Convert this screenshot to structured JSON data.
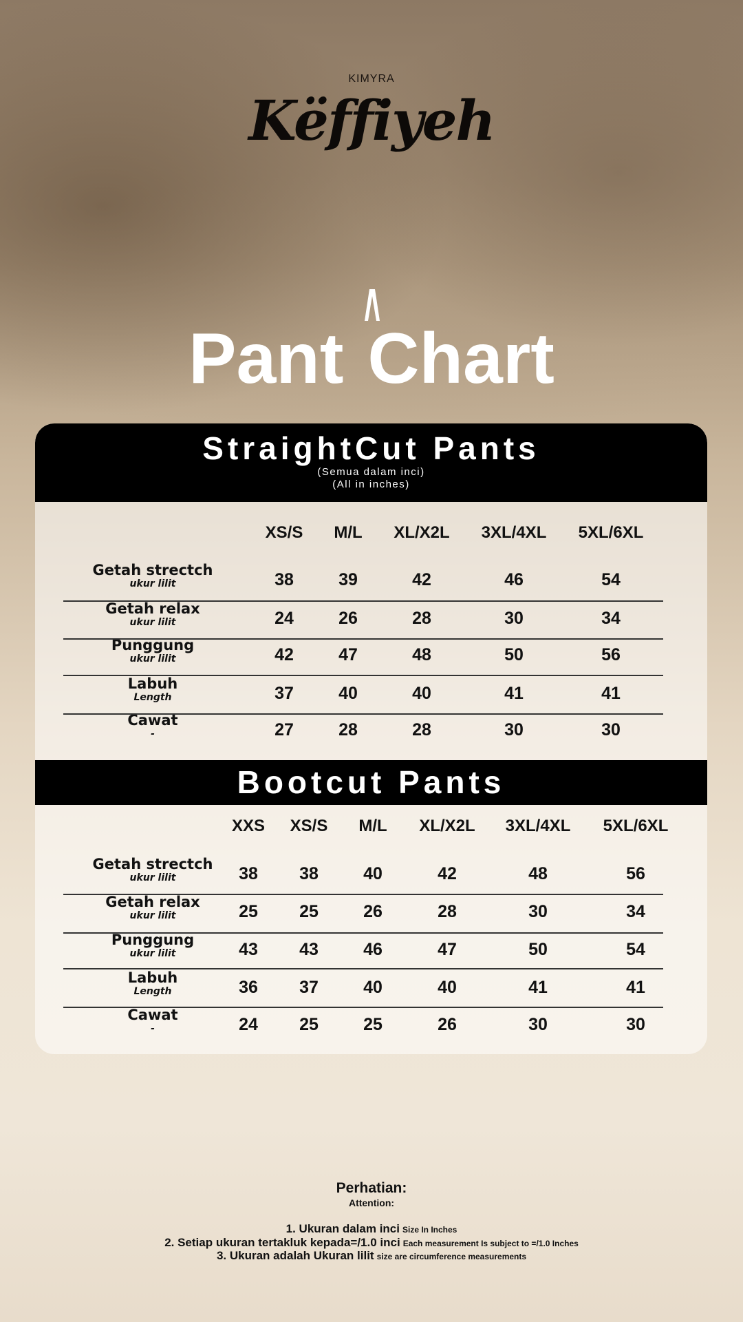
{
  "brand": {
    "sub": "KIMYRA",
    "name": "Këffiyeh"
  },
  "title": "Pant Chart",
  "colors": {
    "header_bar": "#000000",
    "title_text": "#ffffff"
  },
  "straight": {
    "title": "StraightCut Pants",
    "note_ms": "(Semua dalam inci)",
    "note_en": "(All in inches)",
    "sizes": [
      "XS/S",
      "M/L",
      "XL/X2L",
      "3XL/4XL",
      "5XL/6XL"
    ],
    "rows": [
      {
        "label": "Getah strectch",
        "sub": "ukur lilit",
        "values": [
          "38",
          "39",
          "42",
          "46",
          "54"
        ]
      },
      {
        "label": "Getah relax",
        "sub": "ukur lilit",
        "values": [
          "24",
          "26",
          "28",
          "30",
          "34"
        ]
      },
      {
        "label": "Punggung",
        "sub": "ukur lilit",
        "values": [
          "42",
          "47",
          "48",
          "50",
          "56"
        ]
      },
      {
        "label": "Labuh",
        "sub": "Length",
        "values": [
          "37",
          "40",
          "40",
          "41",
          "41"
        ]
      },
      {
        "label": "Cawat",
        "sub": "-",
        "values": [
          "27",
          "28",
          "28",
          "30",
          "30"
        ]
      }
    ]
  },
  "bootcut": {
    "title": "Bootcut Pants",
    "sizes": [
      "XXS",
      "XS/S",
      "M/L",
      "XL/X2L",
      "3XL/4XL",
      "5XL/6XL"
    ],
    "rows": [
      {
        "label": "Getah strectch",
        "sub": "ukur lilit",
        "values": [
          "38",
          "38",
          "40",
          "42",
          "48",
          "56"
        ]
      },
      {
        "label": "Getah relax",
        "sub": "ukur lilit",
        "values": [
          "25",
          "25",
          "26",
          "28",
          "30",
          "34"
        ]
      },
      {
        "label": "Punggung",
        "sub": "ukur lilit",
        "values": [
          "43",
          "43",
          "46",
          "47",
          "50",
          "54"
        ]
      },
      {
        "label": "Labuh",
        "sub": "Length",
        "values": [
          "36",
          "37",
          "40",
          "40",
          "41",
          "41"
        ]
      },
      {
        "label": "Cawat",
        "sub": "-",
        "values": [
          "24",
          "25",
          "25",
          "26",
          "30",
          "30"
        ]
      }
    ]
  },
  "footer": {
    "heading": "Perhatian:",
    "subheading": "Attention:",
    "notes": [
      {
        "ms": "1. Ukuran dalam inci",
        "en": "Size In Inches"
      },
      {
        "ms": "2. Setiap ukuran tertakluk kepada=/1.0 inci",
        "en": "Each measurement Is subject to =/1.0 Inches"
      },
      {
        "ms": "3. Ukuran adalah Ukuran lilit",
        "en": "size are circumference measurements"
      }
    ]
  }
}
